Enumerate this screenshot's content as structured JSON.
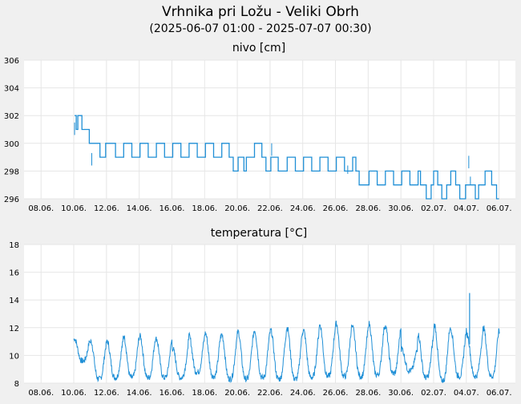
{
  "title": "Vrhnika pri Ložu - Veliki Obrh",
  "subtitle": "(2025-06-07 01:00 - 2025-07-07 00:30)",
  "colors": {
    "background": "#f0f0f0",
    "plot_bg": "#ffffff",
    "series": "#1f8fd6",
    "grid": "#e6e6e6"
  },
  "chart_data": [
    {
      "type": "line",
      "title": "nivo [cm]",
      "xlabel": "",
      "ylabel": "",
      "x_ticks": [
        "08.06.",
        "10.06.",
        "12.06.",
        "14.06.",
        "16.06.",
        "18.06.",
        "20.06.",
        "22.06.",
        "24.06.",
        "26.06.",
        "28.06.",
        "30.06.",
        "02.07.",
        "04.07.",
        "06.07."
      ],
      "x_tick_days": [
        1.0,
        3.0,
        5.0,
        7.0,
        9.0,
        11.0,
        13.0,
        15.0,
        17.0,
        19.0,
        21.0,
        23.0,
        25.0,
        27.0,
        29.0
      ],
      "xlim_days": [
        -0.04,
        30.0
      ],
      "y_ticks": [
        "296",
        "298",
        "300",
        "302",
        "304",
        "306"
      ],
      "ylim": [
        296,
        306
      ],
      "grid": true,
      "series": [
        {
          "points": [
            [
              3.05,
              302
            ],
            [
              3.15,
              301
            ],
            [
              3.25,
              302
            ],
            [
              3.5,
              301
            ],
            [
              3.95,
              300
            ],
            [
              4.6,
              299
            ],
            [
              4.95,
              300
            ],
            [
              5.55,
              299
            ],
            [
              6.05,
              300
            ],
            [
              6.55,
              299
            ],
            [
              7.05,
              300
            ],
            [
              7.55,
              299
            ],
            [
              8.05,
              300
            ],
            [
              8.55,
              299
            ],
            [
              9.05,
              300
            ],
            [
              9.55,
              299
            ],
            [
              10.05,
              300
            ],
            [
              10.55,
              299
            ],
            [
              11.05,
              300
            ],
            [
              11.55,
              299
            ],
            [
              12.05,
              300
            ],
            [
              12.5,
              299
            ],
            [
              12.75,
              298
            ],
            [
              13.05,
              299
            ],
            [
              13.4,
              298
            ],
            [
              13.55,
              299
            ],
            [
              14.05,
              300
            ],
            [
              14.5,
              299
            ],
            [
              14.75,
              298
            ],
            [
              15.05,
              299
            ],
            [
              15.5,
              298
            ],
            [
              16.05,
              299
            ],
            [
              16.55,
              298
            ],
            [
              17.05,
              299
            ],
            [
              17.55,
              298
            ],
            [
              18.05,
              299
            ],
            [
              18.55,
              298
            ],
            [
              19.05,
              299
            ],
            [
              19.55,
              298
            ],
            [
              20.05,
              299
            ],
            [
              20.25,
              298
            ],
            [
              20.45,
              297
            ],
            [
              21.05,
              298
            ],
            [
              21.55,
              297
            ],
            [
              22.05,
              298
            ],
            [
              22.55,
              297
            ],
            [
              23.05,
              298
            ],
            [
              23.55,
              297
            ],
            [
              24.05,
              298
            ],
            [
              24.2,
              297
            ],
            [
              24.55,
              296
            ],
            [
              24.85,
              297
            ],
            [
              25.0,
              298
            ],
            [
              25.25,
              297
            ],
            [
              25.5,
              296
            ],
            [
              25.8,
              297
            ],
            [
              26.05,
              298
            ],
            [
              26.35,
              297
            ],
            [
              26.6,
              296
            ],
            [
              26.95,
              297
            ],
            [
              27.55,
              296
            ],
            [
              27.75,
              297
            ],
            [
              28.15,
              298
            ],
            [
              28.55,
              297
            ],
            [
              28.85,
              296
            ],
            [
              29.0,
              296
            ]
          ]
        }
      ]
    },
    {
      "type": "line",
      "title": "temperatura [°C]",
      "xlabel": "",
      "ylabel": "",
      "x_ticks": [
        "08.06.",
        "10.06.",
        "12.06.",
        "14.06.",
        "16.06.",
        "18.06.",
        "20.06.",
        "22.06.",
        "24.06.",
        "26.06.",
        "28.06.",
        "30.06.",
        "02.07.",
        "04.07.",
        "06.07."
      ],
      "x_tick_days": [
        1.0,
        3.0,
        5.0,
        7.0,
        9.0,
        11.0,
        13.0,
        15.0,
        17.0,
        19.0,
        21.0,
        23.0,
        25.0,
        27.0,
        29.0
      ],
      "xlim_days": [
        -0.04,
        30.0
      ],
      "y_ticks": [
        "8",
        "10",
        "12",
        "14",
        "16",
        "18"
      ],
      "ylim": [
        8,
        18
      ],
      "grid": true,
      "series": [
        {
          "start_day": 3.0,
          "end_day": 29.05,
          "daily_max": [
            11.2,
            11.0,
            11.0,
            11.4,
            11.4,
            11.2,
            10.5,
            11.4,
            11.6,
            11.5,
            11.7,
            11.8,
            11.8,
            12.0,
            11.8,
            12.2,
            12.3,
            12.0,
            12.3,
            12.1,
            10.5,
            11.5,
            12.2,
            11.9,
            11.5,
            12.0,
            11.7
          ],
          "daily_min": [
            9.6,
            8.3,
            8.4,
            8.4,
            8.4,
            8.4,
            8.4,
            8.8,
            8.5,
            8.3,
            8.3,
            8.4,
            8.3,
            8.3,
            8.4,
            8.5,
            8.5,
            8.5,
            8.6,
            8.7,
            8.9,
            8.4,
            8.2,
            8.5,
            8.5,
            8.5,
            8.7
          ],
          "spike": {
            "x": 27.2,
            "y": 14.5
          }
        }
      ]
    }
  ]
}
